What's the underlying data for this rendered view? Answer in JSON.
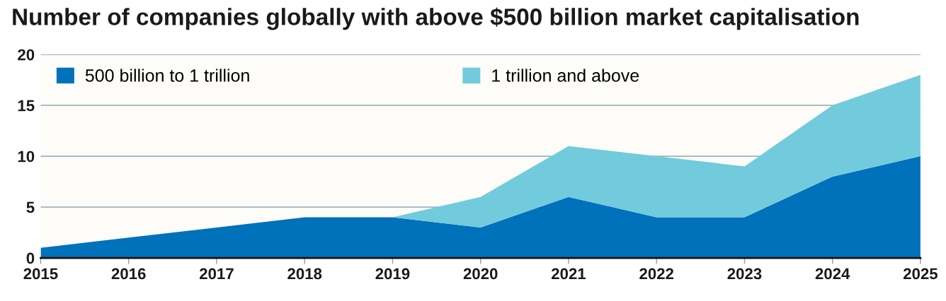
{
  "chart_data": {
    "type": "area",
    "title": "Number of companies globally with above $500 billion market capitalisation",
    "x": [
      2015,
      2016,
      2017,
      2018,
      2019,
      2020,
      2021,
      2022,
      2023,
      2024,
      2025
    ],
    "series": [
      {
        "name": "500 billion to 1 trillion",
        "color": "#0071bb",
        "values": [
          1,
          2,
          3,
          4,
          4,
          3,
          6,
          4,
          4,
          8,
          10
        ]
      },
      {
        "name": "1 trillion and above",
        "color": "#72cbdd",
        "values": [
          0,
          0,
          0,
          0,
          0,
          3,
          5,
          6,
          5,
          7,
          8
        ]
      }
    ],
    "stacked": true,
    "xlim": [
      2015,
      2025
    ],
    "xticks": [
      2015,
      2016,
      2017,
      2018,
      2019,
      2020,
      2021,
      2022,
      2023,
      2024,
      2025
    ],
    "ylim": [
      0,
      20
    ],
    "yticks": [
      0,
      5,
      10,
      15,
      20
    ],
    "grid": "y",
    "legend": "top left"
  }
}
